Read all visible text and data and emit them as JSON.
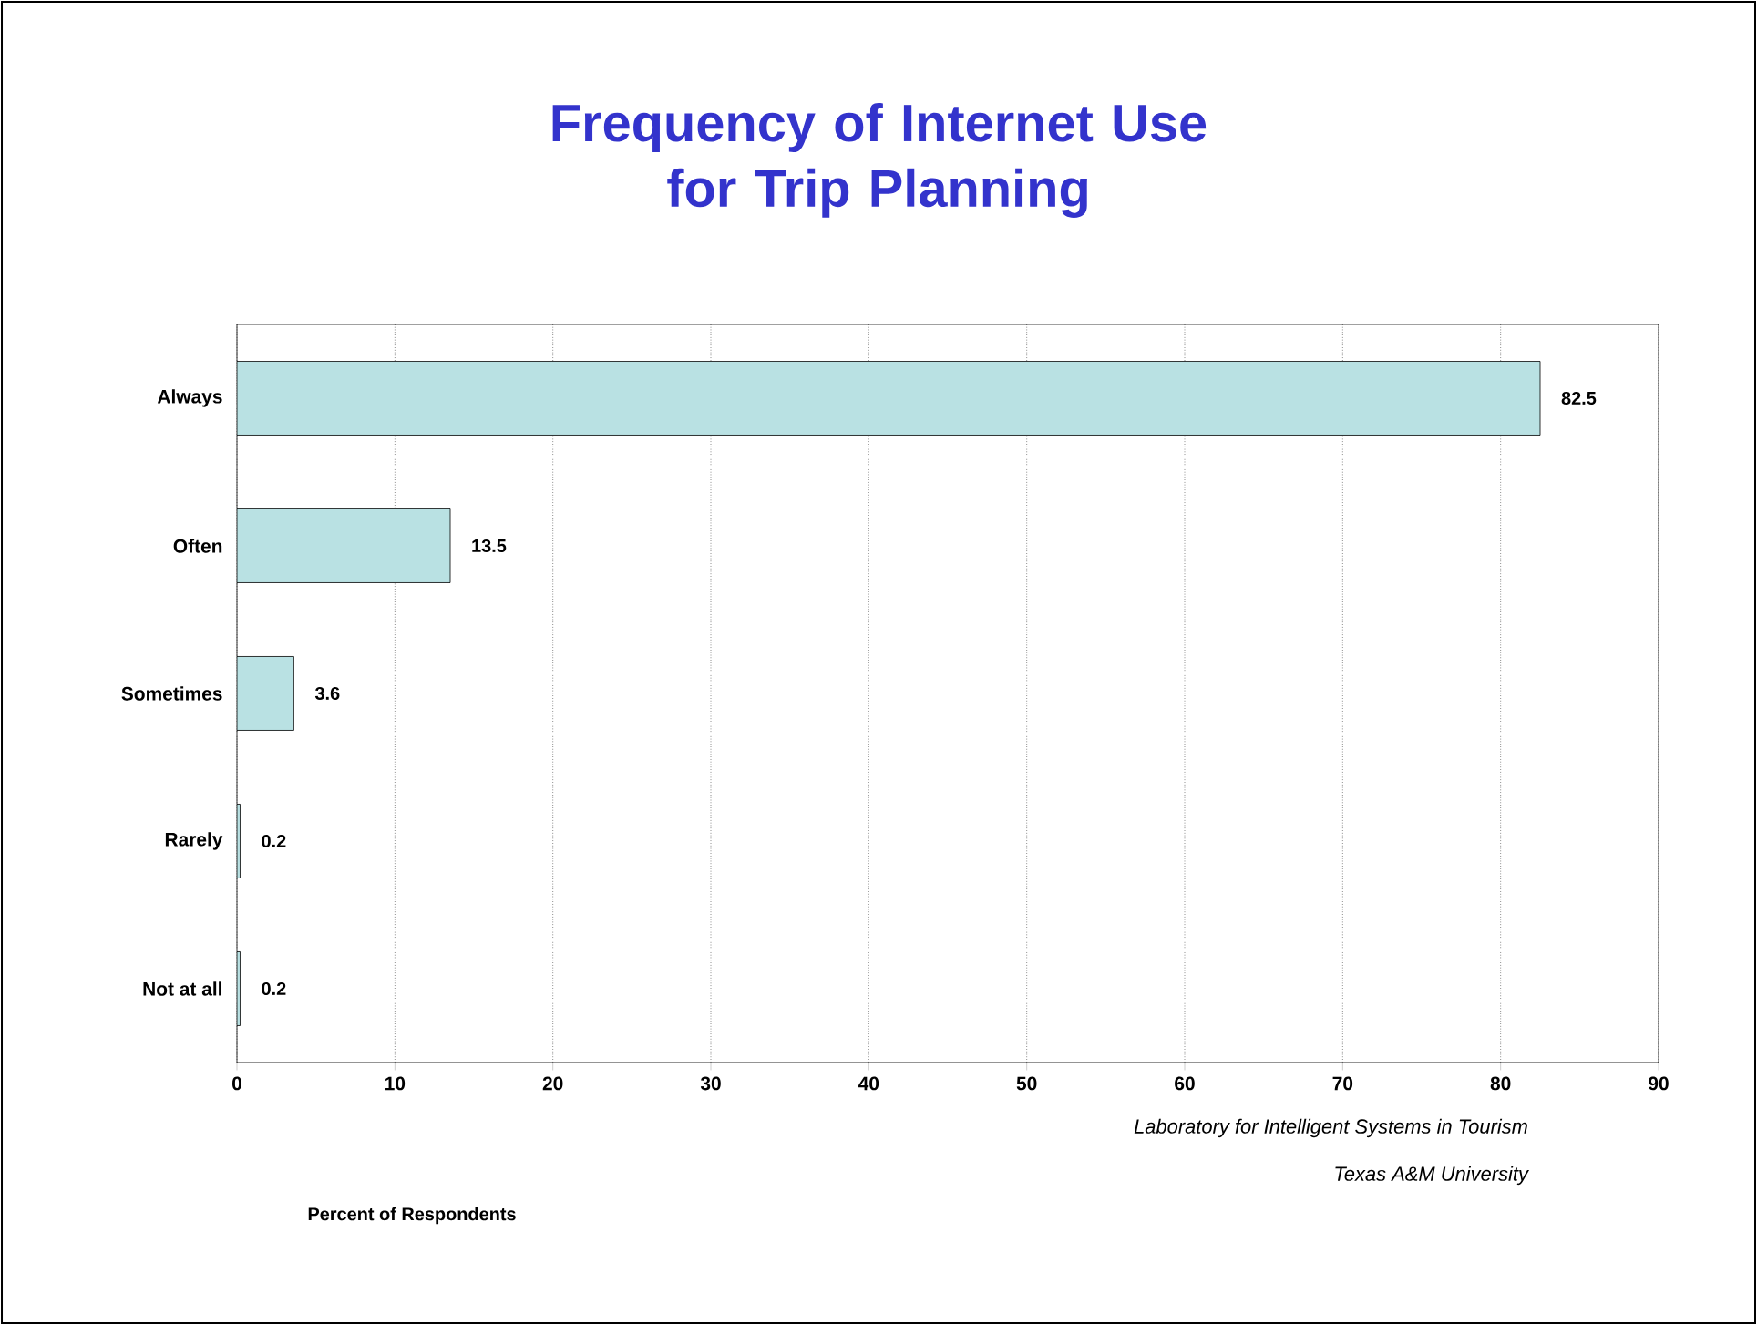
{
  "chart_data": {
    "type": "bar",
    "orientation": "horizontal",
    "title": "Frequency of Internet Use\nfor Trip Planning",
    "categories": [
      "Always",
      "Often",
      "Sometimes",
      "Rarely",
      "Not at all"
    ],
    "values": [
      82.5,
      13.5,
      3.6,
      0.2,
      0.2
    ],
    "color": "#b9e1e3",
    "data_labels": true,
    "xlim": [
      0,
      90
    ],
    "xticks": [
      0,
      10,
      20,
      30,
      40,
      50,
      60,
      70,
      80,
      90
    ],
    "grid": "x",
    "annotations": [
      "Percent of Respondents",
      "Laboratory for Intelligent Systems in Tourism",
      "Texas A&M University"
    ]
  }
}
